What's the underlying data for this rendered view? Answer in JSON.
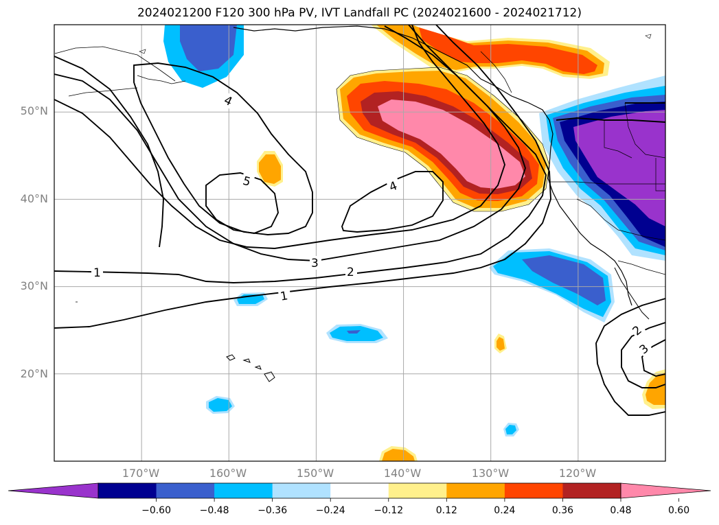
{
  "title": "2024021200 F120 300 hPa PV, IVT Landfall PC (2024021600 - 2024021712)",
  "map": {
    "lat_labels": [
      "50°N",
      "40°N",
      "30°N",
      "20°N"
    ],
    "lon_labels": [
      "170°W",
      "160°W",
      "150°W",
      "140°W",
      "130°W",
      "120°W"
    ],
    "lat_values": [
      50,
      40,
      30,
      20
    ],
    "lon_values": [
      -170,
      -160,
      -150,
      -140,
      -130,
      -120
    ],
    "extent": {
      "lon_min": -180,
      "lon_max": -110,
      "lat_min": 10,
      "lat_max": 60
    },
    "contour_labels": [
      "1",
      "2",
      "3",
      "4",
      "4",
      "5",
      "1",
      "2",
      "3"
    ]
  },
  "colorbar": {
    "ticks": [
      "−0.60",
      "−0.48",
      "−0.36",
      "−0.24",
      "−0.12",
      "0.12",
      "0.24",
      "0.36",
      "0.48",
      "0.60"
    ],
    "colors": [
      "#9933cc",
      "#000090",
      "#3a5fcd",
      "#00bfff",
      "#b0e2ff",
      "#ffffff",
      "#fff08c",
      "#ffa500",
      "#ff4500",
      "#b22222",
      "#ff88aa"
    ]
  }
}
